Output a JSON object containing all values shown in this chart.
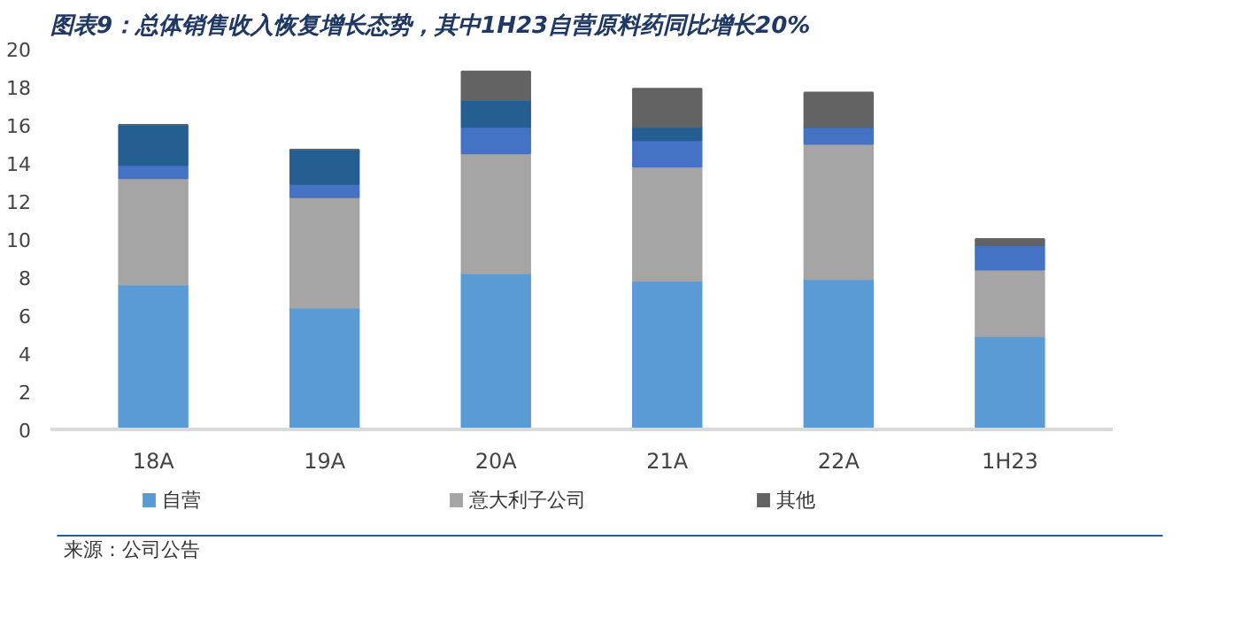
{
  "chart_data": {
    "type": "bar",
    "stacked": true,
    "title": "图表9：总体销售收入恢复增长态势，其中1H23自营原料药同比增长20%",
    "categories": [
      "18A",
      "19A",
      "20A",
      "21A",
      "22A",
      "1H23"
    ],
    "series": [
      {
        "name": "自营",
        "color": "#5b9bd5",
        "values": [
          7.6,
          6.4,
          8.2,
          7.8,
          7.9,
          4.9
        ]
      },
      {
        "name": "意大利子公司",
        "color": "#a5a5a5",
        "values": [
          5.6,
          5.8,
          6.3,
          6.0,
          7.1,
          3.5
        ]
      },
      {
        "color": "#4472c4",
        "values": [
          0.7,
          0.7,
          1.4,
          1.4,
          0.9,
          1.3
        ]
      },
      {
        "color": "#255e91",
        "values": [
          2.1,
          1.8,
          1.4,
          0.7,
          0,
          0
        ]
      },
      {
        "name": "其他",
        "color": "#636363",
        "values": [
          0,
          0,
          1.5,
          2.0,
          1.8,
          0.3
        ]
      }
    ],
    "ylim": [
      0,
      20
    ],
    "yticks": [
      0,
      2,
      4,
      6,
      8,
      10,
      12,
      14,
      16,
      18,
      20
    ],
    "grid": false,
    "legend": "bottom",
    "annotations": [
      "来源：公司公告"
    ]
  }
}
